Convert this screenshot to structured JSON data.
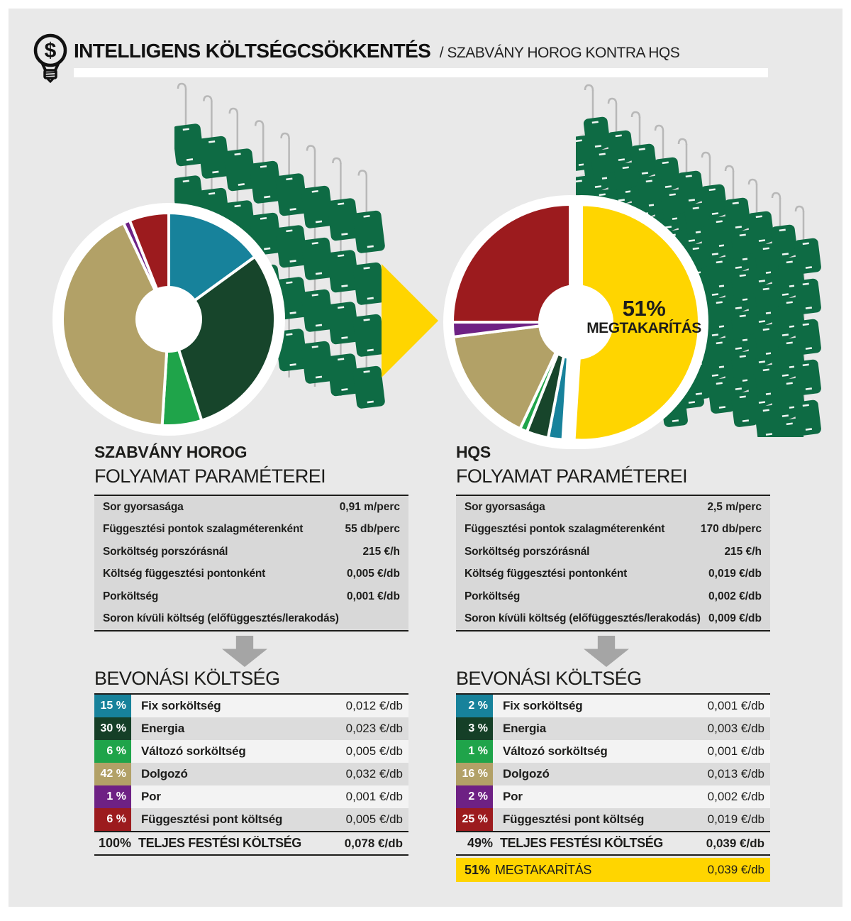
{
  "header": {
    "title": "INTELLIGENS KÖLTSÉGCSÖKKENTÉS",
    "subtitle": "/ SZABVÁNY HOROG KONTRA HQS",
    "icon": "dollar-lightbulb-icon"
  },
  "colors": {
    "panel_bg": "#e9e9e9",
    "accent_yellow": "#ffd500",
    "teal": "#17829b",
    "dark_green": "#17452b",
    "green": "#1fa44a",
    "khaki": "#b2a167",
    "purple": "#6e2184",
    "dark_red": "#9c1b1e",
    "table_bg": "#d8d8d8",
    "row_light": "#f3f3f3",
    "row_dark": "#dcdcdc",
    "arrow_gray": "#a5a5a5"
  },
  "illustration": {
    "part_color": "#0e6b44",
    "wire_color": "#b8b8b8",
    "beam_color": "#dedede",
    "left_hangers": {
      "wires": 8
    },
    "right_hangers": {
      "wires": 10
    }
  },
  "chart_data": [
    {
      "type": "pie",
      "title": "SZABVÁNY HOROG — bevonási költség megoszlása",
      "labels": [
        "Fix sorköltség",
        "Energia",
        "Változó sorköltség",
        "Dolgozó",
        "Por",
        "Függesztési pont költség"
      ],
      "values": [
        15,
        30,
        6,
        42,
        1,
        6
      ],
      "colors": [
        "#17829b",
        "#17452b",
        "#1fa44a",
        "#b2a167",
        "#6e2184",
        "#9c1b1e"
      ],
      "donut": true,
      "start_angle_deg": 0,
      "legend_position": "table-below"
    },
    {
      "type": "pie",
      "title": "HQS — bevonási költség és megtakarítás",
      "labels": [
        "Megtakarítás",
        "Fix sorköltség",
        "Energia",
        "Változó sorköltség",
        "Dolgozó",
        "Por",
        "Függesztési pont költség"
      ],
      "values": [
        51,
        2,
        3,
        1,
        16,
        2,
        25
      ],
      "colors": [
        "#ffd500",
        "#17829b",
        "#17452b",
        "#1fa44a",
        "#b2a167",
        "#6e2184",
        "#9c1b1e"
      ],
      "donut": true,
      "exploded_index": 0,
      "start_angle_deg": 0,
      "annotation": "51% MEGTAKARÍTÁS",
      "legend_position": "table-below"
    }
  ],
  "left": {
    "name": "SZABVÁNY HOROG",
    "params_title": "FOLYAMAT PARAMÉTEREI",
    "params": [
      {
        "label": "Sor gyorsasága",
        "value": "0,91 m/perc"
      },
      {
        "label": "Függesztési pontok szalagméterenként",
        "value": "55 db/perc"
      },
      {
        "label": "Sorköltség porszórásnál",
        "value": "215 €/h"
      },
      {
        "label": "Költség függesztési pontonként",
        "value": "0,005 €/db"
      },
      {
        "label": "Porköltség",
        "value": "0,001 €/db"
      },
      {
        "label": "Soron kívüli költség (előfüggesztés/lerakodás)",
        "value": ""
      }
    ],
    "costs_title": "BEVONÁSI KÖLTSÉG",
    "costs": [
      {
        "pct": "15 %",
        "color": "#17829b",
        "label": "Fix sorköltség",
        "value": "0,012 €/db"
      },
      {
        "pct": "30 %",
        "color": "#153f27",
        "label": "Energia",
        "value": "0,023 €/db"
      },
      {
        "pct": "6 %",
        "color": "#1fa44a",
        "label": "Változó sorköltség",
        "value": "0,005 €/db"
      },
      {
        "pct": "42 %",
        "color": "#b2a167",
        "label": "Dolgozó",
        "value": "0,032 €/db"
      },
      {
        "pct": "1 %",
        "color": "#6e2184",
        "label": "Por",
        "value": "0,001 €/db"
      },
      {
        "pct": "6 %",
        "color": "#9c1b1e",
        "label": "Függesztési pont költség",
        "value": "0,005 €/db"
      }
    ],
    "total": {
      "pct": "100%",
      "label": "TELJES FESTÉSI KÖLTSÉG",
      "value": "0,078 €/db"
    }
  },
  "right": {
    "name": "HQS",
    "params_title": "FOLYAMAT PARAMÉTEREI",
    "params": [
      {
        "label": "Sor gyorsasága",
        "value": "2,5 m/perc"
      },
      {
        "label": "Függesztési pontok szalagméterenként",
        "value": "170 db/perc"
      },
      {
        "label": "Sorköltség porszórásnál",
        "value": "215 €/h"
      },
      {
        "label": "Költség függesztési pontonként",
        "value": "0,019 €/db"
      },
      {
        "label": "Porköltség",
        "value": "0,002 €/db"
      },
      {
        "label": "Soron kívüli költség (előfüggesztés/lerakodás)",
        "value": "0,009 €/db"
      }
    ],
    "costs_title": "BEVONÁSI KÖLTSÉG",
    "costs": [
      {
        "pct": "2 %",
        "color": "#17829b",
        "label": "Fix sorköltség",
        "value": "0,001 €/db"
      },
      {
        "pct": "3 %",
        "color": "#153f27",
        "label": "Energia",
        "value": "0,003 €/db"
      },
      {
        "pct": "1 %",
        "color": "#1fa44a",
        "label": "Változó sorköltség",
        "value": "0,001 €/db"
      },
      {
        "pct": "16 %",
        "color": "#b2a167",
        "label": "Dolgozó",
        "value": "0,013 €/db"
      },
      {
        "pct": "2 %",
        "color": "#6e2184",
        "label": "Por",
        "value": "0,002 €/db"
      },
      {
        "pct": "25 %",
        "color": "#9c1b1e",
        "label": "Függesztési pont költség",
        "value": "0,019 €/db"
      }
    ],
    "total": {
      "pct": "49%",
      "label": "TELJES FESTÉSI KÖLTSÉG",
      "value": "0,039 €/db"
    },
    "savings": {
      "pct": "51%",
      "label": "MEGTAKARÍTÁS",
      "value": "0,039 €/db"
    },
    "callout": {
      "line1": "51%",
      "line2": "MEGTAKARÍTÁS"
    }
  }
}
